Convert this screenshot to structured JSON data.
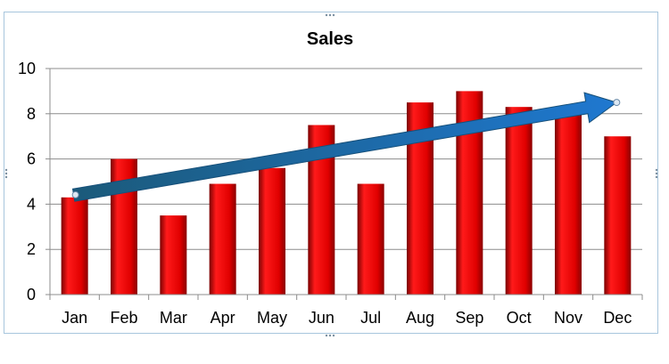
{
  "chart_data": {
    "type": "bar",
    "title": "Sales",
    "categories": [
      "Jan",
      "Feb",
      "Mar",
      "Apr",
      "May",
      "Jun",
      "Jul",
      "Aug",
      "Sep",
      "Oct",
      "Nov",
      "Dec"
    ],
    "values": [
      4.3,
      6,
      3.5,
      4.9,
      5.6,
      7.5,
      4.9,
      8.5,
      9,
      8.3,
      8,
      7
    ],
    "ylim": [
      0,
      10
    ],
    "yticks": [
      0,
      2,
      4,
      6,
      8,
      10
    ],
    "grid": true,
    "bar_color": "#e00000",
    "trend_arrow": {
      "from": {
        "category": "Jan",
        "y": 4.4
      },
      "to": {
        "category": "Dec",
        "y": 8.5
      },
      "color": "#1f6fb8"
    }
  }
}
